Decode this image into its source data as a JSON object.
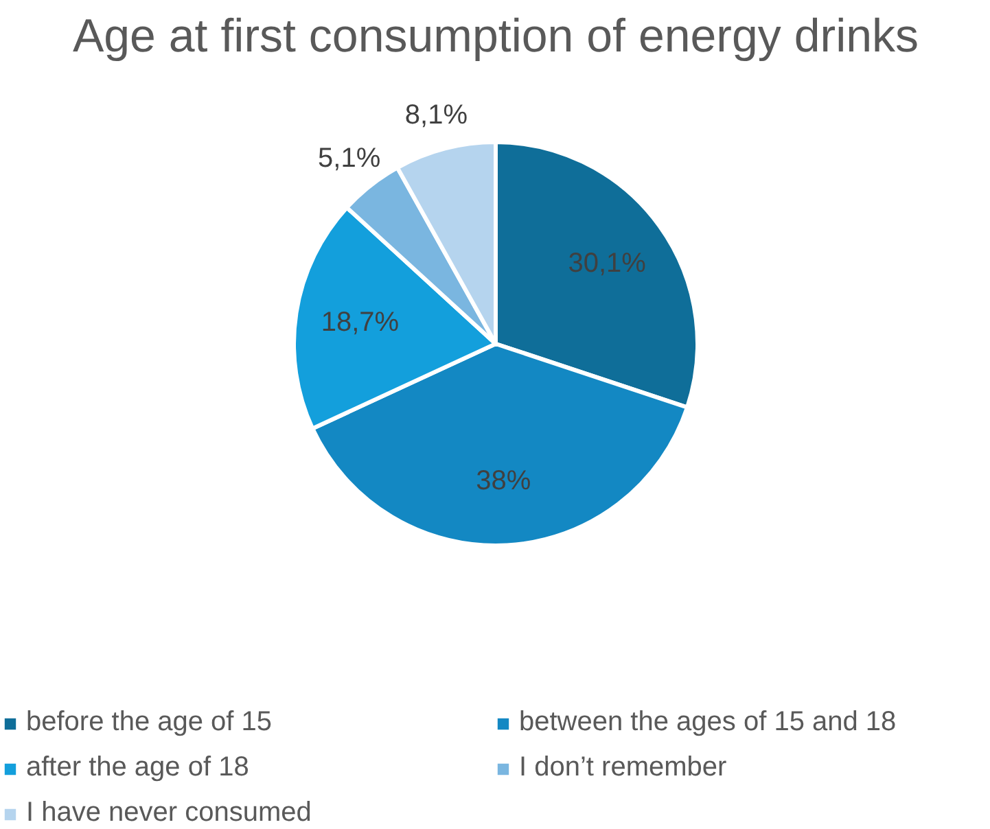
{
  "chart_data": {
    "type": "pie",
    "title": "Age at first consumption of energy drinks",
    "categories": [
      "before the age of 15",
      "between the ages of 15 and 18",
      "after the age of 18",
      "I don’t remember",
      "I have never consumed"
    ],
    "values": [
      30.1,
      38,
      18.7,
      5.1,
      8.1
    ],
    "colors": [
      "#0f6e99",
      "#1388c3",
      "#139fdc",
      "#7ab6e0",
      "#b5d4ee"
    ],
    "value_labels": [
      "30,1%",
      "38%",
      "18,7%",
      "5,1%",
      "8,1%"
    ],
    "legend": "bottom"
  }
}
